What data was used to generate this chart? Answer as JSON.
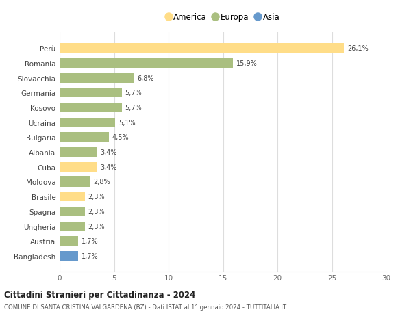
{
  "countries": [
    "Perù",
    "Romania",
    "Slovacchia",
    "Germania",
    "Kosovo",
    "Ucraina",
    "Bulgaria",
    "Albania",
    "Cuba",
    "Moldova",
    "Brasile",
    "Spagna",
    "Ungheria",
    "Austria",
    "Bangladesh"
  ],
  "values": [
    26.1,
    15.9,
    6.8,
    5.7,
    5.7,
    5.1,
    4.5,
    3.4,
    3.4,
    2.8,
    2.3,
    2.3,
    2.3,
    1.7,
    1.7
  ],
  "labels": [
    "26,1%",
    "15,9%",
    "6,8%",
    "5,7%",
    "5,7%",
    "5,1%",
    "4,5%",
    "3,4%",
    "3,4%",
    "2,8%",
    "2,3%",
    "2,3%",
    "2,3%",
    "1,7%",
    "1,7%"
  ],
  "continents": [
    "America",
    "Europa",
    "Europa",
    "Europa",
    "Europa",
    "Europa",
    "Europa",
    "Europa",
    "America",
    "Europa",
    "America",
    "Europa",
    "Europa",
    "Europa",
    "Asia"
  ],
  "colors": {
    "America": "#FFDD88",
    "Europa": "#AABF80",
    "Asia": "#6699CC"
  },
  "legend_order": [
    "America",
    "Europa",
    "Asia"
  ],
  "legend_colors": [
    "#FFDD88",
    "#AABF80",
    "#6699CC"
  ],
  "xlim": [
    0,
    30
  ],
  "xticks": [
    0,
    5,
    10,
    15,
    20,
    25,
    30
  ],
  "title": "Cittadini Stranieri per Cittadinanza - 2024",
  "subtitle": "COMUNE DI SANTA CRISTINA VALGARDENA (BZ) - Dati ISTAT al 1° gennaio 2024 - TUTTITALIA.IT",
  "bg_color": "#ffffff",
  "grid_color": "#dddddd",
  "bar_height": 0.65
}
